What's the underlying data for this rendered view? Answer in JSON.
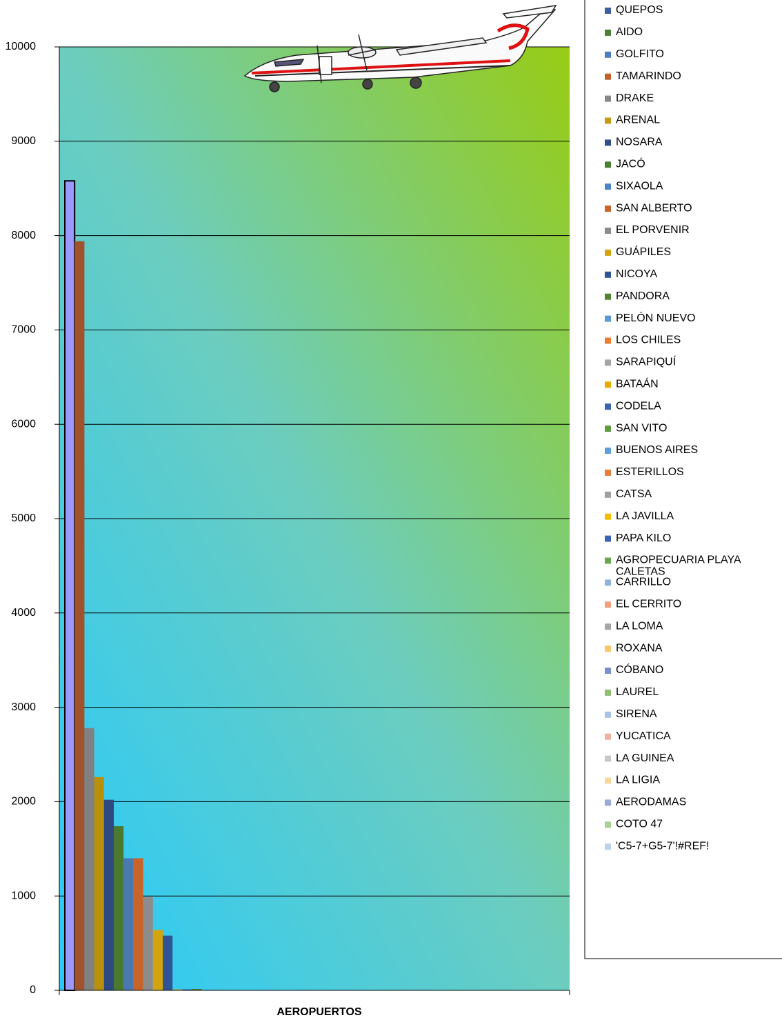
{
  "chart_data": {
    "type": "bar",
    "x_label": "AEROPUERTOS",
    "categories": [
      "AEROPUERTOS"
    ],
    "ylim": [
      0,
      10000
    ],
    "yticks": [
      0,
      1000,
      2000,
      3000,
      4000,
      5000,
      6000,
      7000,
      8000,
      9000,
      10000
    ],
    "grid": true,
    "series": [
      {
        "name": "QUEPOS",
        "color": "#3d5f9e",
        "bar_color": "#9999ff",
        "bar_stroke": "#000000",
        "values": [
          8580
        ]
      },
      {
        "name": "AIDO",
        "color": "#4e7f36",
        "bar_color": "#a0522d",
        "values": [
          7940
        ]
      },
      {
        "name": "GOLFITO",
        "color": "#4a80bf",
        "bar_color": "#808080",
        "values": [
          2780
        ]
      },
      {
        "name": "TAMARINDO",
        "color": "#c0602a",
        "bar_color": "#b8900c",
        "values": [
          2260
        ]
      },
      {
        "name": "DRAKE",
        "color": "#888888",
        "bar_color": "#2e4a80",
        "values": [
          2020
        ]
      },
      {
        "name": "ARENAL",
        "color": "#c89a10",
        "bar_color": "#4a7a30",
        "values": [
          1740
        ]
      },
      {
        "name": "NOSARA",
        "color": "#2e4f8c",
        "bar_color": "#4a78b0",
        "values": [
          1400
        ]
      },
      {
        "name": "JACÓ",
        "color": "#4a8032",
        "bar_color": "#c8642a",
        "values": [
          1400
        ]
      },
      {
        "name": "SIXAOLA",
        "color": "#4a86c4",
        "bar_color": "#8c8c8c",
        "values": [
          990
        ]
      },
      {
        "name": "SAN ALBERTO",
        "color": "#c8642a",
        "bar_color": "#d4a410",
        "values": [
          640
        ]
      },
      {
        "name": "EL PORVENIR",
        "color": "#8c8c8c",
        "bar_color": "#2f5597",
        "values": [
          580
        ]
      },
      {
        "name": "GUÁPILES",
        "color": "#d4a410",
        "values": [
          10
        ]
      },
      {
        "name": "NICOYA",
        "color": "#2f5597",
        "values": [
          10
        ]
      },
      {
        "name": "PANDORA",
        "color": "#548235",
        "values": [
          15
        ]
      },
      {
        "name": "PELÓN NUEVO",
        "color": "#5b9bd5",
        "values": [
          5
        ]
      },
      {
        "name": "LOS CHILES",
        "color": "#ed7d31",
        "values": [
          5
        ]
      },
      {
        "name": "SARAPIQUÍ",
        "color": "#a5a5a5",
        "values": [
          0
        ]
      },
      {
        "name": "BATAÁN",
        "color": "#e6ad00",
        "values": [
          0
        ]
      },
      {
        "name": "CODELA",
        "color": "#3a62b0",
        "values": [
          0
        ]
      },
      {
        "name": "SAN VITO",
        "color": "#5f9a3c",
        "values": [
          0
        ]
      },
      {
        "name": "BUENOS AIRES",
        "color": "#5f9ed6",
        "values": [
          0
        ]
      },
      {
        "name": "ESTERILLOS",
        "color": "#e77c3a",
        "values": [
          0
        ]
      },
      {
        "name": "CATSA",
        "color": "#a0a0a0",
        "values": [
          0
        ]
      },
      {
        "name": "LA JAVILLA",
        "color": "#f2bd00",
        "values": [
          0
        ]
      },
      {
        "name": "PAPA KILO",
        "color": "#3a64b4",
        "values": [
          0
        ]
      },
      {
        "name": "AGROPECUARIA PLAYA CALETAS",
        "color": "#6aa84f",
        "values": [
          0
        ]
      },
      {
        "name": "CARRILLO",
        "color": "#8fb4dc",
        "values": [
          0
        ]
      },
      {
        "name": "EL CERRITO",
        "color": "#f0a07a",
        "values": [
          0
        ]
      },
      {
        "name": "LA LOMA",
        "color": "#a6a6a6",
        "values": [
          0
        ]
      },
      {
        "name": "ROXANA",
        "color": "#f5c96a",
        "values": [
          0
        ]
      },
      {
        "name": "CÓBANO",
        "color": "#7a90cc",
        "values": [
          0
        ]
      },
      {
        "name": "LAUREL",
        "color": "#8fbf6e",
        "values": [
          0
        ]
      },
      {
        "name": "SIRENA",
        "color": "#a7c2e2",
        "values": [
          0
        ]
      },
      {
        "name": "YUCATICA",
        "color": "#f0b2a0",
        "values": [
          0
        ]
      },
      {
        "name": "LA GUINEA",
        "color": "#c8c8c8",
        "values": [
          0
        ]
      },
      {
        "name": "LA LIGIA",
        "color": "#f5d89a",
        "values": [
          0
        ]
      },
      {
        "name": "AERODAMAS",
        "color": "#9aaad6",
        "values": [
          0
        ]
      },
      {
        "name": "COTO 47",
        "color": "#a9cf92",
        "values": [
          0
        ]
      },
      {
        "name": "'C5-7+G5-7'!#REF!",
        "color": "#bcd2ec",
        "values": [
          0
        ]
      }
    ]
  }
}
